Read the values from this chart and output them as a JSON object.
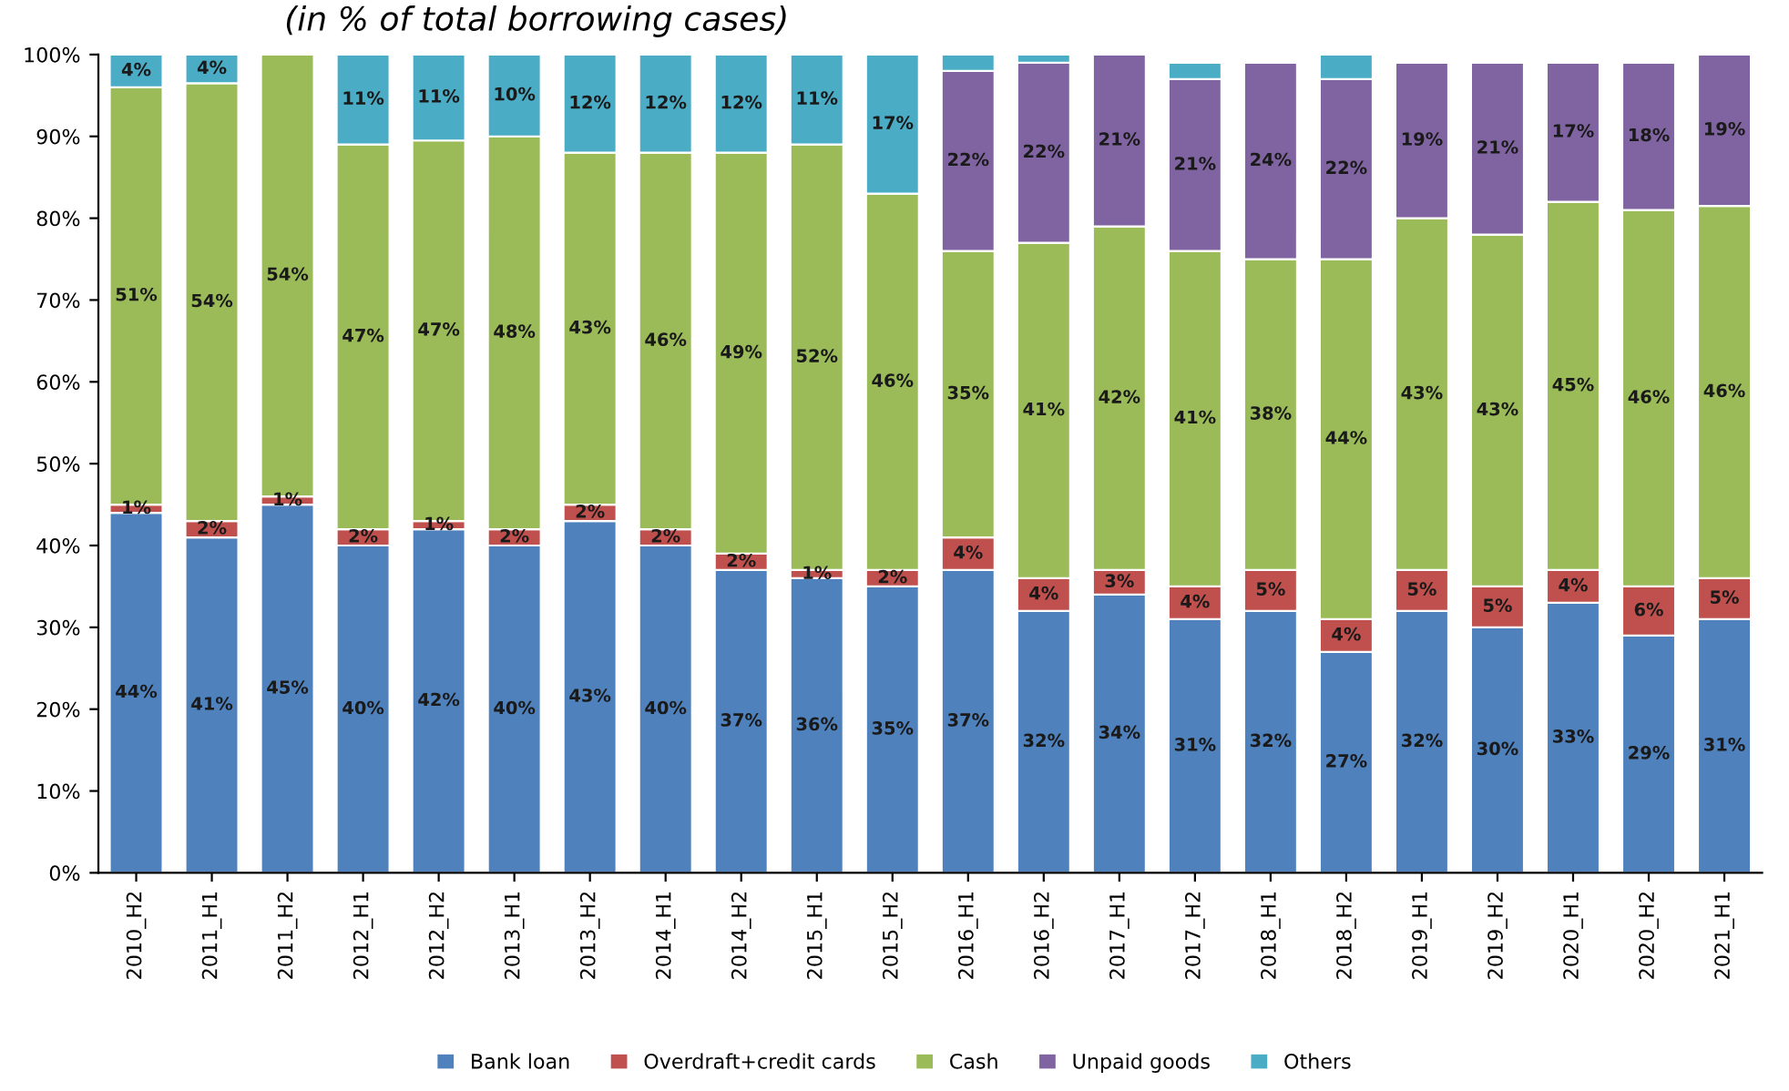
{
  "chart_data": {
    "type": "bar",
    "stacked": true,
    "title": "(in % of total borrowing cases)",
    "categories": [
      "2010_H2",
      "2011_H1",
      "2011_H2",
      "2012_H1",
      "2012_H2",
      "2013_H1",
      "2013_H2",
      "2014_H1",
      "2014_H2",
      "2015_H1",
      "2015_H2",
      "2016_H1",
      "2016_H2",
      "2017_H1",
      "2017_H2",
      "2018_H1",
      "2018_H2",
      "2019_H1",
      "2019_H2",
      "2020_H1",
      "2020_H2",
      "2021_H1"
    ],
    "series": [
      {
        "name": "Bank loan",
        "color": "#4f81bd",
        "values": [
          44,
          41,
          45,
          40,
          42,
          40,
          43,
          40,
          37,
          36,
          35,
          37,
          32,
          34,
          31,
          32,
          27,
          32,
          30,
          33,
          29,
          31
        ],
        "value_labels": [
          "44%",
          "41%",
          "45%",
          "40%",
          "42%",
          "40%",
          "43%",
          "40%",
          "37%",
          "36%",
          "35%",
          "37%",
          "32%",
          "34%",
          "31%",
          "32%",
          "27%",
          "32%",
          "30%",
          "33%",
          "29%",
          "31%"
        ]
      },
      {
        "name": "Overdraft+credit cards",
        "color": "#c0504d",
        "values": [
          1,
          2,
          1,
          2,
          1,
          2,
          2,
          2,
          2,
          1,
          2,
          4,
          4,
          3,
          4,
          5,
          4,
          5,
          5,
          4,
          6,
          5
        ],
        "value_labels": [
          "1%",
          "2%",
          "1%",
          "2%",
          "1%",
          "2%",
          "2%",
          "2%",
          "2%",
          "1%",
          "2%",
          "4%",
          "4%",
          "3%",
          "4%",
          "5%",
          "4%",
          "5%",
          "5%",
          "4%",
          "6%",
          "5%"
        ]
      },
      {
        "name": "Cash",
        "color": "#9bbb59",
        "values": [
          51,
          53.5,
          54,
          47,
          46.5,
          48,
          43,
          46,
          49,
          52,
          46,
          35,
          41,
          42,
          41,
          38,
          44,
          43,
          43,
          45,
          46,
          45.5
        ],
        "value_labels": [
          "51%",
          "54%",
          "54%",
          "47%",
          "47%",
          "48%",
          "43%",
          "46%",
          "49%",
          "52%",
          "46%",
          "35%",
          "41%",
          "42%",
          "41%",
          "38%",
          "44%",
          "43%",
          "43%",
          "45%",
          "46%",
          "46%"
        ]
      },
      {
        "name": "Unpaid goods",
        "color": "#8064a2",
        "values": [
          null,
          null,
          null,
          null,
          null,
          null,
          null,
          null,
          null,
          null,
          null,
          22,
          22,
          21,
          21,
          24,
          22,
          19,
          21,
          17,
          18,
          18.5
        ],
        "value_labels": [
          null,
          null,
          null,
          null,
          null,
          null,
          null,
          null,
          null,
          null,
          null,
          "22%",
          "22%",
          "21%",
          "21%",
          "24%",
          "22%",
          "19%",
          "21%",
          "17%",
          "18%",
          "19%"
        ]
      },
      {
        "name": "Others",
        "color": "#4bacc6",
        "values": [
          4,
          3.5,
          null,
          11,
          10.5,
          10,
          12,
          12,
          12,
          11,
          17,
          2,
          1,
          null,
          2,
          null,
          3,
          null,
          null,
          null,
          null,
          null
        ],
        "value_labels": [
          "4%",
          "4%",
          null,
          "11%",
          "11%",
          "10%",
          "12%",
          "12%",
          "12%",
          "11%",
          "17%",
          null,
          null,
          null,
          null,
          null,
          null,
          null,
          null,
          null,
          null,
          null
        ]
      }
    ],
    "ylim": [
      0,
      100
    ],
    "yticks": [
      {
        "value": 0,
        "label": "0%"
      },
      {
        "value": 10,
        "label": "10%"
      },
      {
        "value": 20,
        "label": "20%"
      },
      {
        "value": 30,
        "label": "30%"
      },
      {
        "value": 40,
        "label": "40%"
      },
      {
        "value": 50,
        "label": "50%"
      },
      {
        "value": 60,
        "label": "60%"
      },
      {
        "value": 70,
        "label": "70%"
      },
      {
        "value": 80,
        "label": "80%"
      },
      {
        "value": 90,
        "label": "90%"
      },
      {
        "value": 100,
        "label": "100%"
      }
    ],
    "legend": "bottom"
  }
}
